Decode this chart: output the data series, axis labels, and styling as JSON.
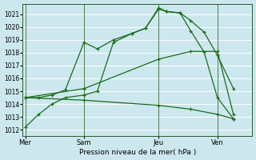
{
  "xlabel": "Pression niveau de la mer( hPa )",
  "bg_color": "#cce8ee",
  "grid_color": "#b0d8e0",
  "line_color": "#1a6b1a",
  "ylim": [
    1011.5,
    1021.8
  ],
  "yticks": [
    1012,
    1013,
    1014,
    1015,
    1016,
    1017,
    1018,
    1019,
    1020,
    1021
  ],
  "day_labels": [
    "Mer",
    "Sam",
    "Jeu",
    "Ven"
  ],
  "day_positions": [
    0,
    2.2,
    5.0,
    7.2
  ],
  "xlim": [
    -0.1,
    8.5
  ],
  "series": [
    {
      "x": [
        0.0,
        0.5,
        1.0,
        1.5,
        2.2,
        2.7,
        3.3,
        4.0,
        4.5,
        5.0,
        5.3,
        5.8,
        6.2,
        6.7,
        7.2,
        7.8
      ],
      "y": [
        1012.2,
        1013.2,
        1014.0,
        1014.5,
        1014.7,
        1015.0,
        1018.8,
        1019.5,
        1019.9,
        1021.4,
        1021.2,
        1021.1,
        1019.7,
        1018.05,
        1014.5,
        1012.85
      ]
    },
    {
      "x": [
        0.0,
        0.5,
        1.0,
        1.5,
        2.2,
        2.7,
        3.3,
        4.0,
        4.5,
        5.0,
        5.3,
        5.8,
        6.2,
        6.7,
        7.2,
        7.8
      ],
      "y": [
        1014.5,
        1014.5,
        1014.7,
        1015.1,
        1018.8,
        1018.3,
        1019.0,
        1019.5,
        1019.9,
        1021.5,
        1021.2,
        1021.1,
        1020.5,
        1019.6,
        1017.8,
        1015.2
      ]
    },
    {
      "x": [
        0.0,
        2.2,
        5.0,
        6.2,
        7.2,
        7.8
      ],
      "y": [
        1014.5,
        1015.2,
        1017.5,
        1018.1,
        1018.1,
        1013.2
      ]
    },
    {
      "x": [
        0.0,
        2.2,
        5.0,
        6.2,
        7.2,
        7.8
      ],
      "y": [
        1014.5,
        1014.3,
        1013.9,
        1013.6,
        1013.2,
        1012.85
      ]
    }
  ]
}
